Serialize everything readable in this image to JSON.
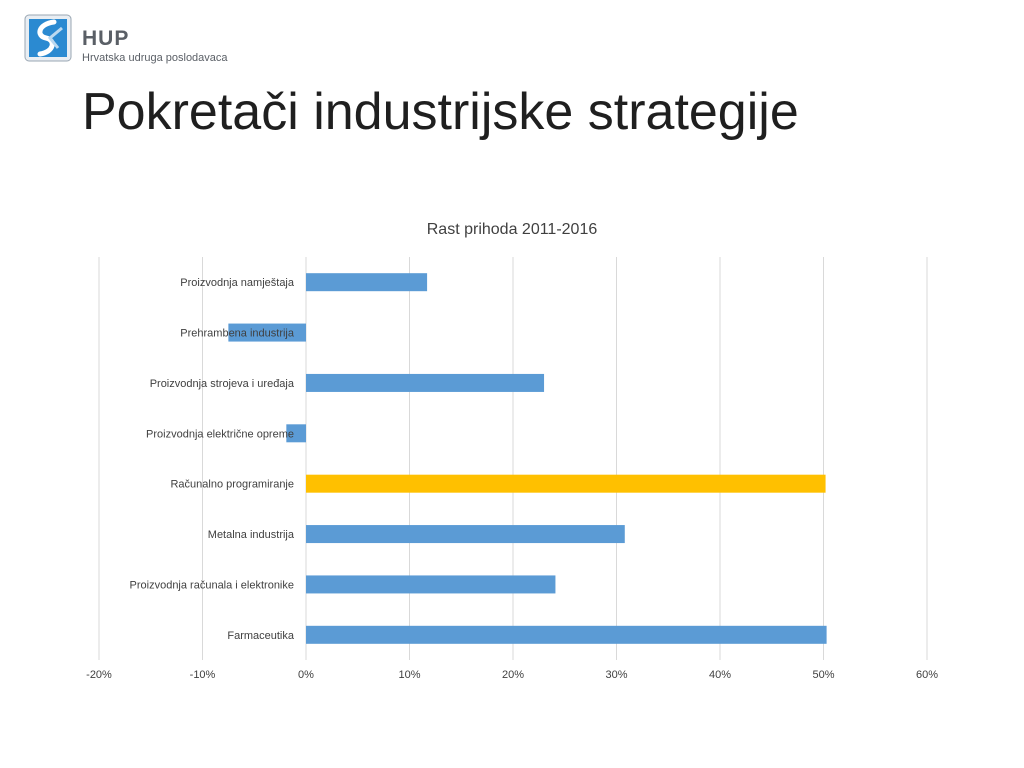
{
  "logo": {
    "icon": "hup-logo-icon",
    "name": "HUP",
    "subtitle": "Hrvatska udruga poslodavaca"
  },
  "slide": {
    "title": "Pokretači industrijske strategije"
  },
  "colors": {
    "bar_default": "#5b9bd5",
    "bar_highlight": "#ffc000",
    "gridline": "#d9d9d9"
  },
  "chart_data": {
    "type": "bar",
    "orientation": "horizontal",
    "title": "Rast prihoda 2011-2016",
    "xlabel": "",
    "ylabel": "",
    "categories": [
      "Proizvodnja namještaja",
      "Prehrambena industrija",
      "Proizvodnja strojeva i uređaja",
      "Proizvodnja električne opreme",
      "Računalno programiranje",
      "Metalna industrija",
      "Proizvodnja računala i elektronike",
      "Farmaceutika"
    ],
    "values": [
      0.117,
      -0.075,
      0.23,
      -0.019,
      0.502,
      0.308,
      0.241,
      0.503
    ],
    "highlight_index": 4,
    "xlim": [
      -0.2,
      0.6
    ],
    "xticks": [
      -0.2,
      -0.1,
      0,
      0.1,
      0.2,
      0.3,
      0.4,
      0.5,
      0.6
    ],
    "xtick_labels": [
      "-20%",
      "-10%",
      "0%",
      "10%",
      "20%",
      "30%",
      "40%",
      "50%",
      "60%"
    ],
    "grid": true,
    "legend": "none"
  }
}
